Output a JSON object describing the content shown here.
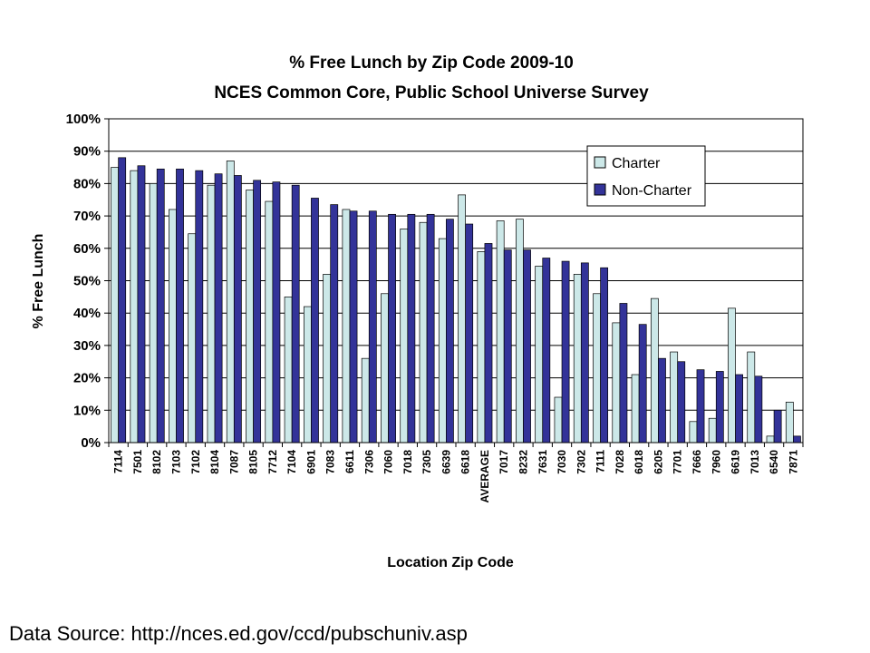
{
  "chart_data": {
    "type": "bar",
    "title": "% Free Lunch by Zip Code 2009-10",
    "subtitle": "NCES Common Core, Public School Universe Survey",
    "xlabel": "Location Zip Code",
    "ylabel": "% Free Lunch",
    "ylim": [
      0,
      100
    ],
    "yticks": [
      "0%",
      "10%",
      "20%",
      "30%",
      "40%",
      "50%",
      "60%",
      "70%",
      "80%",
      "90%",
      "100%"
    ],
    "grid": true,
    "legend_position": "top-right",
    "categories": [
      "7114",
      "7501",
      "8102",
      "7103",
      "7102",
      "8104",
      "7087",
      "8105",
      "7712",
      "7104",
      "6901",
      "7083",
      "6611",
      "7306",
      "7060",
      "7018",
      "7305",
      "6639",
      "6618",
      "AVERAGE",
      "7017",
      "8232",
      "7631",
      "7030",
      "7302",
      "7111",
      "7028",
      "6018",
      "6205",
      "7701",
      "7666",
      "7960",
      "6619",
      "7013",
      "6540",
      "7871"
    ],
    "series": [
      {
        "name": "Charter",
        "color": "#cce8e8",
        "values": [
          85,
          84,
          80,
          72,
          64.5,
          79.5,
          87,
          78,
          74.5,
          45,
          42,
          52,
          72,
          26,
          46,
          66,
          68,
          63,
          76.5,
          59,
          68.5,
          69,
          54.5,
          14,
          52,
          46,
          37,
          21,
          44.5,
          28,
          6.5,
          7.5,
          41.5,
          28,
          2,
          12.5
        ]
      },
      {
        "name": "Non-Charter",
        "color": "#333399",
        "values": [
          88,
          85.5,
          84.5,
          84.5,
          84,
          83,
          82.5,
          81,
          80.5,
          79.5,
          75.5,
          73.5,
          71.5,
          71.5,
          70.5,
          70.5,
          70.5,
          69,
          67.5,
          61.5,
          59.5,
          59.5,
          57,
          56,
          55.5,
          54,
          43,
          36.5,
          26,
          25,
          22.5,
          22,
          21,
          20.5,
          10,
          2
        ]
      }
    ]
  },
  "footer": {
    "source": "Data Source: http://nces.ed.gov/ccd/pubschuniv.asp"
  }
}
